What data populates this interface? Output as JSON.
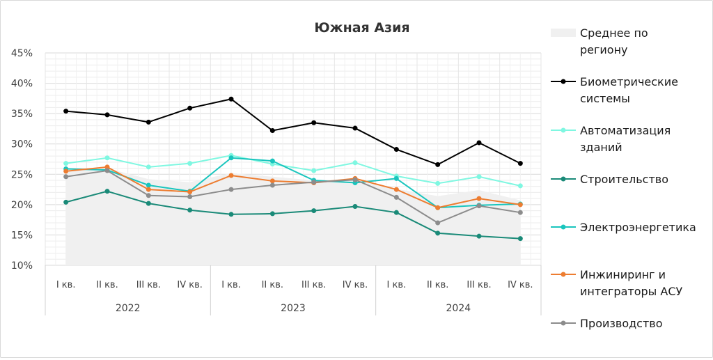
{
  "chart_data": {
    "type": "line",
    "title": "Южная Азия",
    "xlabel": "",
    "ylabel": "",
    "ylim": [
      0.1,
      0.45
    ],
    "y_ticks": [
      "10%",
      "15%",
      "20%",
      "25%",
      "30%",
      "35%",
      "40%",
      "45%"
    ],
    "categories": [
      "I кв.",
      "II кв.",
      "III кв.",
      "IV кв.",
      "I кв.",
      "II кв.",
      "III кв.",
      "IV кв.",
      "I кв.",
      "II кв.",
      "III кв.",
      "IV кв."
    ],
    "years": [
      "2022",
      "2023",
      "2024"
    ],
    "grid": true,
    "legend_position": "right",
    "area": {
      "name": "Среднее по региону",
      "color": "#f0f0f0",
      "values": [
        0.255,
        0.26,
        0.242,
        0.237,
        0.252,
        0.246,
        0.24,
        0.24,
        0.226,
        0.214,
        0.224,
        0.207
      ]
    },
    "series": [
      {
        "name": "Биометрические системы",
        "color": "#000000",
        "marker_fill": "#000000",
        "values": [
          0.354,
          0.348,
          0.336,
          0.359,
          0.374,
          0.322,
          0.335,
          0.326,
          0.291,
          0.266,
          0.302,
          0.268
        ]
      },
      {
        "name": "Автоматизация зданий",
        "color": "#7ff7e1",
        "marker_fill": "#7ff7e1",
        "values": [
          0.268,
          0.277,
          0.262,
          0.268,
          0.281,
          0.267,
          0.256,
          0.269,
          0.247,
          0.235,
          0.246,
          0.231
        ]
      },
      {
        "name": "Строительство",
        "color": "#1a8a78",
        "marker_fill": "#1a8a78",
        "values": [
          0.204,
          0.222,
          0.202,
          0.191,
          0.184,
          0.185,
          0.19,
          0.197,
          0.187,
          0.153,
          0.148,
          0.144
        ]
      },
      {
        "name": "Электроэнергетика",
        "color": "#19c5bd",
        "marker_fill": "#19c5bd",
        "values": [
          0.259,
          0.257,
          0.232,
          0.222,
          0.277,
          0.272,
          0.24,
          0.236,
          0.243,
          0.195,
          0.199,
          0.201
        ]
      },
      {
        "name": "Инжиниринг и интеграторы АСУ",
        "color": "#ed7d31",
        "marker_fill": "#ed7d31",
        "values": [
          0.255,
          0.262,
          0.225,
          0.221,
          0.248,
          0.239,
          0.236,
          0.243,
          0.225,
          0.195,
          0.21,
          0.2
        ]
      },
      {
        "name": "Производство",
        "color": "#8c8c8c",
        "marker_fill": "#8c8c8c",
        "values": [
          0.246,
          0.256,
          0.215,
          0.213,
          0.225,
          0.232,
          0.237,
          0.241,
          0.212,
          0.17,
          0.198,
          0.187
        ]
      }
    ]
  },
  "legend": {
    "items": [
      {
        "line1": "Среднее по",
        "line2": "региону"
      },
      {
        "line1": "Биометрические",
        "line2": "системы"
      },
      {
        "line1": "Автоматизация",
        "line2": "зданий"
      },
      {
        "line1": "Строительство",
        "line2": ""
      },
      {
        "line1": "Электроэнергетика",
        "line2": ""
      },
      {
        "line1": "Инжиниринг и",
        "line2": "интеграторы АСУ"
      },
      {
        "line1": "Производство",
        "line2": ""
      }
    ]
  }
}
